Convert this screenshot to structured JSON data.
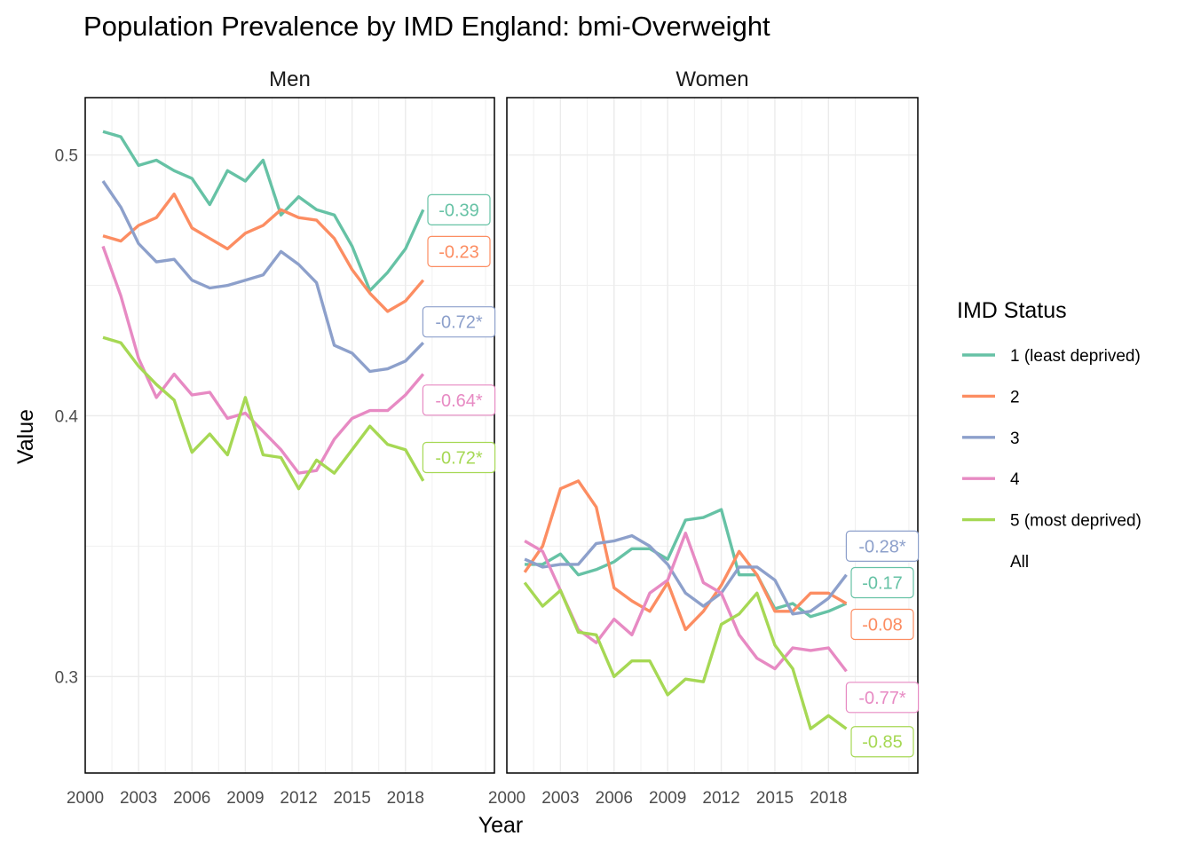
{
  "chart_data": {
    "type": "line",
    "title": "Population Prevalence by IMD England: bmi-Overweight",
    "xlabel": "Year",
    "ylabel": "Value",
    "x_ticks": [
      2000,
      2003,
      2006,
      2009,
      2012,
      2015,
      2018
    ],
    "xlim": [
      2000,
      2023
    ],
    "y_ticks": [
      0.3,
      0.4,
      0.5
    ],
    "grid": true,
    "legend": {
      "title": "IMD Status",
      "placement": "right",
      "entries": [
        {
          "label": "1 (least deprived)",
          "color": "#66C2A5"
        },
        {
          "label": "2",
          "color": "#FC8D62"
        },
        {
          "label": "3",
          "color": "#8DA0CB"
        },
        {
          "label": "4",
          "color": "#E78AC3"
        },
        {
          "label": "5 (most deprived)",
          "color": "#A6D854"
        },
        {
          "label": "All",
          "color": "none"
        }
      ]
    },
    "years": [
      2001,
      2002,
      2003,
      2004,
      2005,
      2006,
      2007,
      2008,
      2009,
      2010,
      2011,
      2012,
      2013,
      2014,
      2015,
      2016,
      2017,
      2018,
      2019
    ],
    "panels": [
      {
        "name": "Men",
        "ylim": [
          0.263,
          0.522
        ],
        "series": [
          {
            "group": "1 (least deprived)",
            "color": "#66C2A5",
            "label": "-0.39",
            "label_value": 0.479,
            "values": [
              0.509,
              0.507,
              0.496,
              0.498,
              0.494,
              0.491,
              0.481,
              0.494,
              0.49,
              0.498,
              0.477,
              0.484,
              0.479,
              0.477,
              0.465,
              0.448,
              0.455,
              0.464,
              0.479
            ]
          },
          {
            "group": "2",
            "color": "#FC8D62",
            "label": "-0.23",
            "label_value": 0.463,
            "values": [
              0.469,
              0.467,
              0.473,
              0.476,
              0.485,
              0.472,
              0.468,
              0.464,
              0.47,
              0.473,
              0.479,
              0.476,
              0.475,
              0.468,
              0.456,
              0.447,
              0.44,
              0.444,
              0.452
            ]
          },
          {
            "group": "3",
            "color": "#8DA0CB",
            "label": "-0.72*",
            "label_value": 0.436,
            "values": [
              0.49,
              0.48,
              0.466,
              0.459,
              0.46,
              0.452,
              0.449,
              0.45,
              0.452,
              0.454,
              0.463,
              0.458,
              0.451,
              0.427,
              0.424,
              0.417,
              0.418,
              0.421,
              0.428
            ]
          },
          {
            "group": "4",
            "color": "#E78AC3",
            "label": "-0.64*",
            "label_value": 0.406,
            "values": [
              0.465,
              0.446,
              0.422,
              0.407,
              0.416,
              0.408,
              0.409,
              0.399,
              0.401,
              0.394,
              0.387,
              0.378,
              0.379,
              0.391,
              0.399,
              0.402,
              0.402,
              0.408,
              0.416
            ]
          },
          {
            "group": "5 (most deprived)",
            "color": "#A6D854",
            "label": "-0.72*",
            "label_value": 0.384,
            "values": [
              0.43,
              0.428,
              0.419,
              0.412,
              0.406,
              0.386,
              0.393,
              0.385,
              0.407,
              0.385,
              0.384,
              0.372,
              0.383,
              0.378,
              0.387,
              0.396,
              0.389,
              0.387,
              0.375
            ]
          }
        ]
      },
      {
        "name": "Women",
        "ylim": [
          0.263,
          0.522
        ],
        "series": [
          {
            "group": "1 (least deprived)",
            "color": "#66C2A5",
            "label": "-0.17",
            "label_value": 0.336,
            "values": [
              0.343,
              0.343,
              0.347,
              0.339,
              0.341,
              0.344,
              0.349,
              0.349,
              0.345,
              0.36,
              0.361,
              0.364,
              0.339,
              0.339,
              0.326,
              0.328,
              0.323,
              0.325,
              0.328
            ]
          },
          {
            "group": "2",
            "color": "#FC8D62",
            "label": "-0.08",
            "label_value": 0.32,
            "values": [
              0.34,
              0.35,
              0.372,
              0.375,
              0.365,
              0.334,
              0.329,
              0.325,
              0.336,
              0.318,
              0.325,
              0.335,
              0.348,
              0.339,
              0.325,
              0.325,
              0.332,
              0.332,
              0.328
            ]
          },
          {
            "group": "3",
            "color": "#8DA0CB",
            "label": "-0.28*",
            "label_value": 0.35,
            "values": [
              0.345,
              0.342,
              0.343,
              0.343,
              0.351,
              0.352,
              0.354,
              0.35,
              0.343,
              0.332,
              0.327,
              0.332,
              0.342,
              0.342,
              0.337,
              0.324,
              0.325,
              0.33,
              0.339
            ]
          },
          {
            "group": "4",
            "color": "#E78AC3",
            "label": "-0.77*",
            "label_value": 0.292,
            "values": [
              0.352,
              0.348,
              0.333,
              0.318,
              0.313,
              0.322,
              0.316,
              0.332,
              0.337,
              0.355,
              0.336,
              0.332,
              0.316,
              0.307,
              0.303,
              0.311,
              0.31,
              0.311,
              0.302
            ]
          },
          {
            "group": "5 (most deprived)",
            "color": "#A6D854",
            "label": "-0.85",
            "label_value": 0.275,
            "values": [
              0.336,
              0.327,
              0.333,
              0.317,
              0.316,
              0.3,
              0.306,
              0.306,
              0.293,
              0.299,
              0.298,
              0.32,
              0.324,
              0.332,
              0.312,
              0.303,
              0.28,
              0.285,
              0.28
            ]
          }
        ]
      }
    ]
  }
}
